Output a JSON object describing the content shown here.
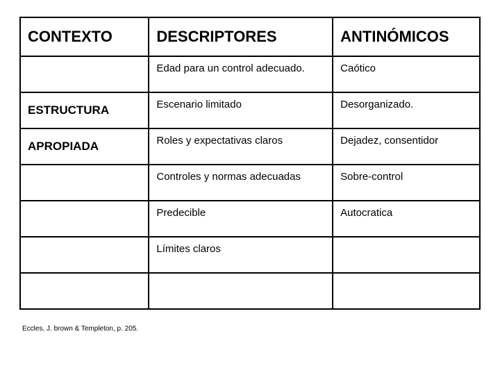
{
  "table": {
    "headers": [
      "CONTEXTO",
      "DESCRIPTORES",
      "ANTINÓMICOS"
    ],
    "rows": [
      {
        "context": "",
        "descriptor": "Edad para un control adecuado.",
        "antonym": "Caótico"
      },
      {
        "context": "ESTRUCTURA",
        "descriptor": "Escenario limitado",
        "antonym": "Desorganizado."
      },
      {
        "context": "APROPIADA",
        "descriptor": "Roles y expectativas claros",
        "antonym": "Dejadez, consentidor"
      },
      {
        "context": "",
        "descriptor": "Controles y normas adecuadas",
        "antonym": "Sobre-control"
      },
      {
        "context": "",
        "descriptor": "Predecible",
        "antonym": "Autocratica"
      },
      {
        "context": "",
        "descriptor": "Límites claros",
        "antonym": ""
      },
      {
        "context": "",
        "descriptor": "",
        "antonym": ""
      }
    ]
  },
  "footnote": "Eccles, J. brown & Templeton, p. 205.",
  "style": {
    "border_color": "#000000",
    "background_color": "#ffffff",
    "text_color": "#000000",
    "header_fontsize": 22,
    "cell_fontsize": 15,
    "context_fontsize": 17,
    "footnote_fontsize": 10,
    "col_widths_pct": [
      28,
      40,
      32
    ]
  }
}
